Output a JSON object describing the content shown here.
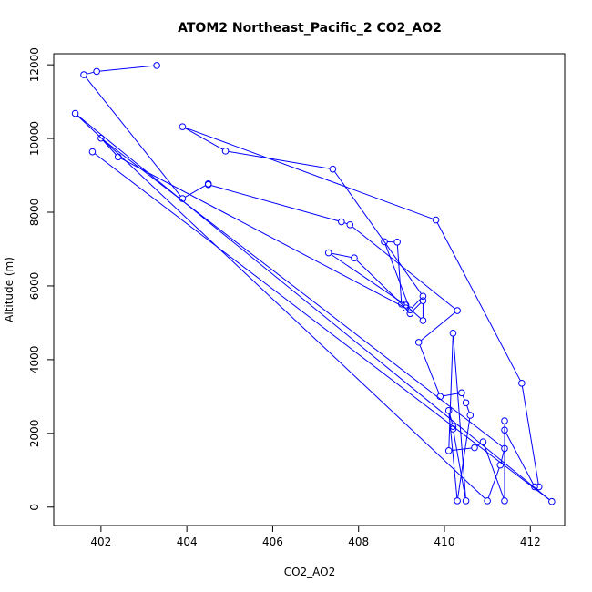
{
  "chart_data": {
    "type": "line",
    "title": "ATOM2 Northeast_Pacific_2 CO2_AO2",
    "xlabel": "CO2_AO2",
    "ylabel": "Altitude (m)",
    "xlim": [
      400.9,
      412.8
    ],
    "ylim": [
      -500,
      12300
    ],
    "x_ticks": [
      402,
      404,
      406,
      408,
      410,
      412
    ],
    "y_ticks": [
      0,
      2000,
      4000,
      6000,
      8000,
      10000,
      12000
    ],
    "series_color": "#0000ff",
    "markers": "open-circle",
    "grid": false,
    "legend": "none",
    "series": [
      {
        "points": [
          [
            403.3,
            11980
          ],
          [
            401.9,
            11820
          ],
          [
            401.6,
            11730
          ],
          [
            403.9,
            8370
          ],
          [
            404.5,
            8770
          ],
          [
            404.5,
            8750
          ],
          [
            407.6,
            7740
          ],
          [
            407.8,
            7660
          ],
          [
            410.3,
            5330
          ],
          [
            409.4,
            4470
          ],
          [
            409.9,
            3000
          ],
          [
            410.4,
            3100
          ],
          [
            410.5,
            2830
          ],
          [
            410.6,
            2490
          ],
          [
            410.3,
            170
          ],
          [
            410.1,
            2620
          ],
          [
            410.2,
            2190
          ],
          [
            410.2,
            2120
          ],
          [
            410.5,
            170
          ],
          [
            410.2,
            4720
          ],
          [
            410.1,
            1530
          ],
          [
            410.7,
            1610
          ],
          [
            410.9,
            1770
          ],
          [
            411.4,
            170
          ],
          [
            411.4,
            2340
          ],
          [
            411.4,
            2090
          ],
          [
            412.1,
            550
          ],
          [
            412.2,
            550
          ],
          [
            411.8,
            3360
          ],
          [
            409.8,
            7790
          ],
          [
            403.9,
            10320
          ],
          [
            404.9,
            9660
          ],
          [
            407.4,
            9170
          ],
          [
            409.5,
            5720
          ],
          [
            409.2,
            5350
          ],
          [
            408.6,
            7200
          ],
          [
            408.9,
            7190
          ],
          [
            409.0,
            5510
          ],
          [
            409.2,
            5250
          ],
          [
            409.5,
            5600
          ],
          [
            409.5,
            5060
          ],
          [
            409.1,
            5480
          ],
          [
            407.3,
            6900
          ],
          [
            407.9,
            6760
          ],
          [
            409.1,
            5400
          ],
          [
            402.4,
            9500
          ],
          [
            402.0,
            10010
          ],
          [
            411.4,
            1590
          ],
          [
            411.3,
            1140
          ],
          [
            411.0,
            170
          ],
          [
            401.4,
            10680
          ],
          [
            412.5,
            150
          ],
          [
            401.8,
            9640
          ]
        ]
      }
    ]
  }
}
